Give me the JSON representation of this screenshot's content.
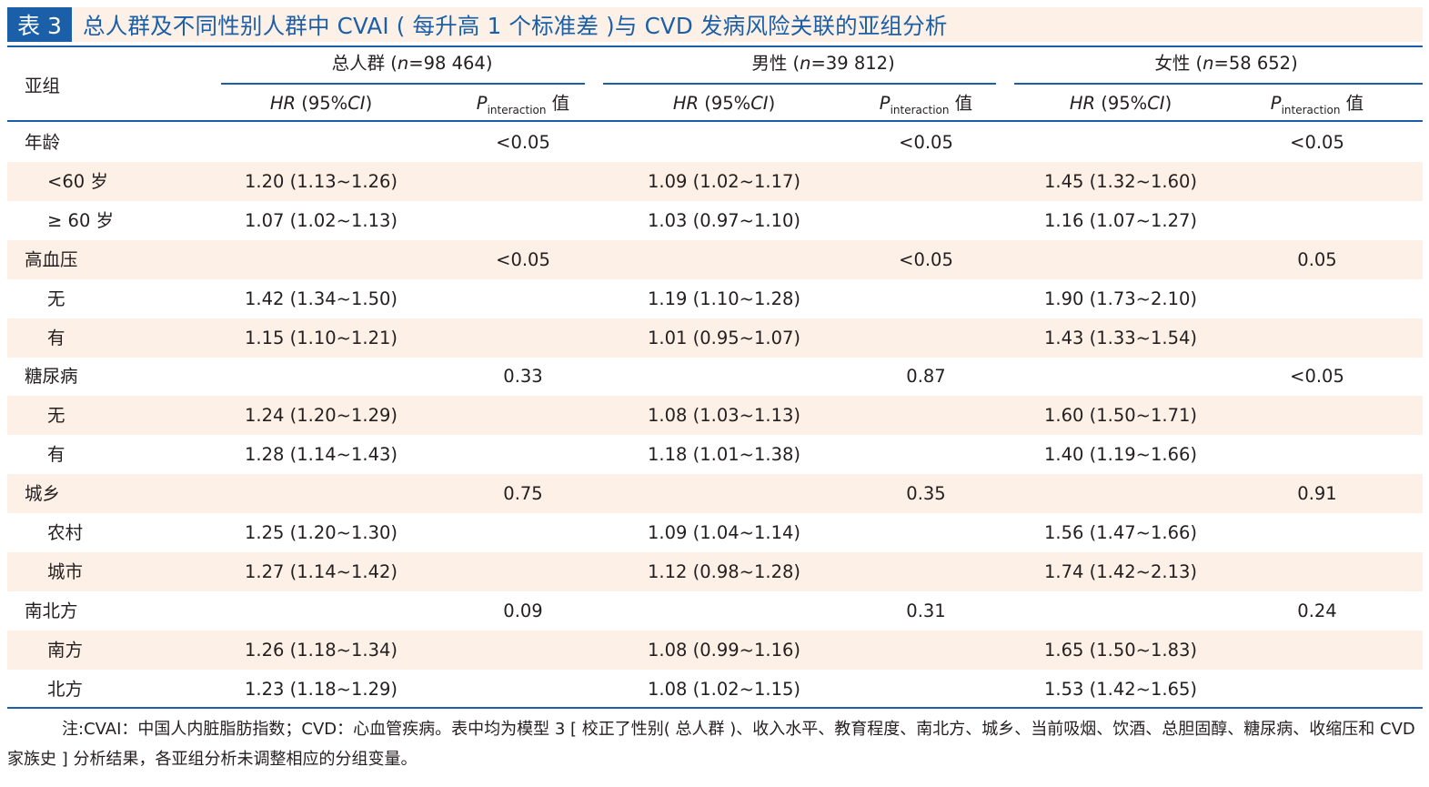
{
  "title": {
    "table_no": "表 3",
    "text": "总人群及不同性别人群中 CVAI ( 每升高 1 个标准差 )与 CVD 发病风险关联的亚组分析"
  },
  "header": {
    "subgroup": "亚组",
    "groups": [
      {
        "label": "总人群",
        "n": "98 464"
      },
      {
        "label": "男性",
        "n": "39 812"
      },
      {
        "label": "女性",
        "n": "58 652"
      }
    ],
    "hr_label": "HR",
    "hr_ci": "(95%",
    "ci_label": "CI",
    "ci_close": ")",
    "p_label": "P",
    "p_sub": "interaction",
    "p_suffix": "值"
  },
  "rows": [
    {
      "label": "年龄",
      "p": [
        "<0.05",
        "<0.05",
        "<0.05"
      ]
    },
    {
      "label": "<60 岁",
      "hr": [
        "1.20 (1.13~1.26)",
        "1.09 (1.02~1.17)",
        "1.45 (1.32~1.60)"
      ]
    },
    {
      "label": "≥ 60 岁",
      "hr": [
        "1.07 (1.02~1.13)",
        "1.03 (0.97~1.10)",
        "1.16 (1.07~1.27)"
      ]
    },
    {
      "label": "高血压",
      "p": [
        "<0.05",
        "<0.05",
        "0.05"
      ]
    },
    {
      "label": "无",
      "hr": [
        "1.42 (1.34~1.50)",
        "1.19 (1.10~1.28)",
        "1.90 (1.73~2.10)"
      ]
    },
    {
      "label": "有",
      "hr": [
        "1.15 (1.10~1.21)",
        "1.01 (0.95~1.07)",
        "1.43 (1.33~1.54)"
      ]
    },
    {
      "label": "糖尿病",
      "p": [
        "0.33",
        "0.87",
        "<0.05"
      ]
    },
    {
      "label": "无",
      "hr": [
        "1.24 (1.20~1.29)",
        "1.08 (1.03~1.13)",
        "1.60 (1.50~1.71)"
      ]
    },
    {
      "label": "有",
      "hr": [
        "1.28 (1.14~1.43)",
        "1.18 (1.01~1.38)",
        "1.40 (1.19~1.66)"
      ]
    },
    {
      "label": "城乡",
      "p": [
        "0.75",
        "0.35",
        "0.91"
      ]
    },
    {
      "label": "农村",
      "hr": [
        "1.25 (1.20~1.30)",
        "1.09 (1.04~1.14)",
        "1.56 (1.47~1.66)"
      ]
    },
    {
      "label": "城市",
      "hr": [
        "1.27 (1.14~1.42)",
        "1.12 (0.98~1.28)",
        "1.74 (1.42~2.13)"
      ]
    },
    {
      "label": "南北方",
      "p": [
        "0.09",
        "0.31",
        "0.24"
      ]
    },
    {
      "label": "南方",
      "hr": [
        "1.26 (1.18~1.34)",
        "1.08 (0.99~1.16)",
        "1.65 (1.50~1.83)"
      ]
    },
    {
      "label": "北方",
      "hr": [
        "1.23 (1.18~1.29)",
        "1.08 (1.02~1.15)",
        "1.53 (1.42~1.65)"
      ]
    }
  ],
  "footnote": "注:CVAI：中国人内脏脂肪指数；CVD：心血管疾病。表中均为模型 3 [ 校正了性别( 总人群 )、收入水平、教育程度、南北方、城乡、当前吸烟、饮酒、总胆固醇、糖尿病、收缩压和 CVD 家族史 ] 分析结果，各亚组分析未调整相应的分组变量。",
  "colors": {
    "accent": "#1a5fa8",
    "shade": "#fdf0e6",
    "text": "#231f20"
  }
}
